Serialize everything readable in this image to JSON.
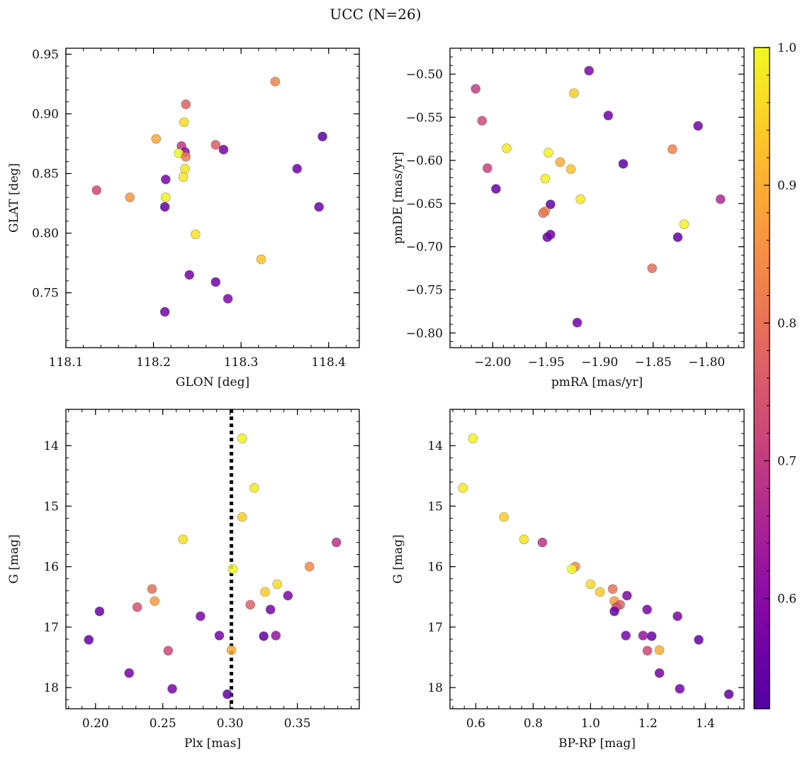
{
  "figure": {
    "title": "UCC (N=26)"
  },
  "colorbar": {
    "range": [
      0.52,
      1.0
    ],
    "ticks": [
      {
        "value": 1.0,
        "label": "1.0"
      },
      {
        "value": 0.9,
        "label": "0.9"
      },
      {
        "value": 0.8,
        "label": "0.8"
      },
      {
        "value": 0.7,
        "label": "0.7"
      },
      {
        "value": 0.6,
        "label": "0.6"
      }
    ],
    "colormap": "plasma"
  },
  "chart_data": [
    {
      "type": "scatter",
      "xlabel": "GLON [deg]",
      "ylabel": "GLAT [deg]",
      "xlim": [
        118.1,
        118.435
      ],
      "ylim": [
        0.704,
        0.955
      ],
      "xticks": [
        {
          "value": 118.1,
          "label": "118.1"
        },
        {
          "value": 118.2,
          "label": "118.2"
        },
        {
          "value": 118.3,
          "label": "118.3"
        },
        {
          "value": 118.4,
          "label": "118.4"
        }
      ],
      "yticks": [
        {
          "value": 0.95,
          "label": "0.95"
        },
        {
          "value": 0.9,
          "label": "0.90"
        },
        {
          "value": 0.85,
          "label": "0.85"
        },
        {
          "value": 0.8,
          "label": "0.80"
        },
        {
          "value": 0.75,
          "label": "0.75"
        }
      ],
      "invert_y": false,
      "points": [
        {
          "x": 118.339,
          "y": 0.927,
          "c": 0.83
        },
        {
          "x": 118.237,
          "y": 0.908,
          "c": 0.77
        },
        {
          "x": 118.235,
          "y": 0.893,
          "c": 0.96
        },
        {
          "x": 118.203,
          "y": 0.879,
          "c": 0.89
        },
        {
          "x": 118.393,
          "y": 0.881,
          "c": 0.53
        },
        {
          "x": 118.271,
          "y": 0.874,
          "c": 0.76
        },
        {
          "x": 118.28,
          "y": 0.87,
          "c": 0.57
        },
        {
          "x": 118.232,
          "y": 0.873,
          "c": 0.69
        },
        {
          "x": 118.236,
          "y": 0.868,
          "c": 0.6
        },
        {
          "x": 118.229,
          "y": 0.867,
          "c": 1.0
        },
        {
          "x": 118.237,
          "y": 0.864,
          "c": 0.82
        },
        {
          "x": 118.236,
          "y": 0.854,
          "c": 0.97
        },
        {
          "x": 118.364,
          "y": 0.854,
          "c": 0.56
        },
        {
          "x": 118.234,
          "y": 0.847,
          "c": 0.98
        },
        {
          "x": 118.214,
          "y": 0.845,
          "c": 0.57
        },
        {
          "x": 118.135,
          "y": 0.836,
          "c": 0.72
        },
        {
          "x": 118.173,
          "y": 0.83,
          "c": 0.86
        },
        {
          "x": 118.214,
          "y": 0.83,
          "c": 0.99
        },
        {
          "x": 118.213,
          "y": 0.822,
          "c": 0.54
        },
        {
          "x": 118.389,
          "y": 0.822,
          "c": 0.56
        },
        {
          "x": 118.248,
          "y": 0.799,
          "c": 0.97
        },
        {
          "x": 118.323,
          "y": 0.778,
          "c": 0.93
        },
        {
          "x": 118.241,
          "y": 0.765,
          "c": 0.57
        },
        {
          "x": 118.271,
          "y": 0.759,
          "c": 0.56
        },
        {
          "x": 118.285,
          "y": 0.745,
          "c": 0.58
        },
        {
          "x": 118.213,
          "y": 0.734,
          "c": 0.56
        }
      ]
    },
    {
      "type": "scatter",
      "xlabel": "pmRA [mas/yr]",
      "ylabel": "pmDE [mas/yr]",
      "xlim": [
        -2.04,
        -1.765
      ],
      "ylim": [
        -0.817,
        -0.47
      ],
      "xticks": [
        {
          "value": -2.0,
          "label": "−2.00"
        },
        {
          "value": -1.95,
          "label": "−1.95"
        },
        {
          "value": -1.9,
          "label": "−1.90"
        },
        {
          "value": -1.85,
          "label": "−1.85"
        },
        {
          "value": -1.8,
          "label": "−1.80"
        }
      ],
      "yticks": [
        {
          "value": -0.5,
          "label": "−0.50"
        },
        {
          "value": -0.55,
          "label": "−0.55"
        },
        {
          "value": -0.6,
          "label": "−0.60"
        },
        {
          "value": -0.65,
          "label": "−0.65"
        },
        {
          "value": -0.7,
          "label": "−0.70"
        },
        {
          "value": -0.75,
          "label": "−0.75"
        },
        {
          "value": -0.8,
          "label": "−0.80"
        }
      ],
      "invert_y": false,
      "points": [
        {
          "x": -1.91,
          "y": -0.496,
          "c": 0.58
        },
        {
          "x": -2.016,
          "y": -0.517,
          "c": 0.7
        },
        {
          "x": -1.924,
          "y": -0.522,
          "c": 0.94
        },
        {
          "x": -1.892,
          "y": -0.548,
          "c": 0.56
        },
        {
          "x": -2.01,
          "y": -0.554,
          "c": 0.73
        },
        {
          "x": -1.808,
          "y": -0.56,
          "c": 0.56
        },
        {
          "x": -1.987,
          "y": -0.586,
          "c": 0.98
        },
        {
          "x": -1.832,
          "y": -0.587,
          "c": 0.83
        },
        {
          "x": -1.948,
          "y": -0.591,
          "c": 0.99
        },
        {
          "x": -1.878,
          "y": -0.604,
          "c": 0.53
        },
        {
          "x": -1.937,
          "y": -0.602,
          "c": 0.9
        },
        {
          "x": -2.005,
          "y": -0.609,
          "c": 0.71
        },
        {
          "x": -1.927,
          "y": -0.61,
          "c": 0.93
        },
        {
          "x": -1.951,
          "y": -0.621,
          "c": 0.99
        },
        {
          "x": -1.997,
          "y": -0.633,
          "c": 0.55
        },
        {
          "x": -1.918,
          "y": -0.645,
          "c": 0.98
        },
        {
          "x": -1.787,
          "y": -0.645,
          "c": 0.66
        },
        {
          "x": -1.946,
          "y": -0.651,
          "c": 0.54
        },
        {
          "x": -1.951,
          "y": -0.659,
          "c": 0.84
        },
        {
          "x": -1.953,
          "y": -0.661,
          "c": 0.81
        },
        {
          "x": -1.821,
          "y": -0.674,
          "c": 0.99
        },
        {
          "x": -1.946,
          "y": -0.686,
          "c": 0.56
        },
        {
          "x": -1.827,
          "y": -0.689,
          "c": 0.55
        },
        {
          "x": -1.949,
          "y": -0.689,
          "c": 0.56
        },
        {
          "x": -1.851,
          "y": -0.725,
          "c": 0.79
        },
        {
          "x": -1.921,
          "y": -0.788,
          "c": 0.56
        }
      ]
    },
    {
      "type": "scatter",
      "xlabel": "Plx [mas]",
      "ylabel": "G [mag]",
      "xlim": [
        0.178,
        0.396
      ],
      "ylim": [
        18.35,
        13.4
      ],
      "xticks": [
        {
          "value": 0.2,
          "label": "0.20"
        },
        {
          "value": 0.25,
          "label": "0.25"
        },
        {
          "value": 0.3,
          "label": "0.30"
        },
        {
          "value": 0.35,
          "label": "0.35"
        }
      ],
      "yticks": [
        {
          "value": 14,
          "label": "14"
        },
        {
          "value": 15,
          "label": "15"
        },
        {
          "value": 16,
          "label": "16"
        },
        {
          "value": 17,
          "label": "17"
        },
        {
          "value": 18,
          "label": "18"
        }
      ],
      "invert_y": true,
      "vline": 0.301,
      "points": [
        {
          "x": 0.309,
          "y": 13.88,
          "c": 0.99
        },
        {
          "x": 0.318,
          "y": 14.7,
          "c": 0.98
        },
        {
          "x": 0.309,
          "y": 15.18,
          "c": 0.94
        },
        {
          "x": 0.265,
          "y": 15.55,
          "c": 0.97
        },
        {
          "x": 0.379,
          "y": 15.6,
          "c": 0.68
        },
        {
          "x": 0.359,
          "y": 16.0,
          "c": 0.84
        },
        {
          "x": 0.302,
          "y": 16.04,
          "c": 1.0
        },
        {
          "x": 0.335,
          "y": 16.29,
          "c": 0.96
        },
        {
          "x": 0.242,
          "y": 16.37,
          "c": 0.8
        },
        {
          "x": 0.326,
          "y": 16.42,
          "c": 0.94
        },
        {
          "x": 0.343,
          "y": 16.48,
          "c": 0.58
        },
        {
          "x": 0.244,
          "y": 16.57,
          "c": 0.87
        },
        {
          "x": 0.315,
          "y": 16.63,
          "c": 0.77
        },
        {
          "x": 0.231,
          "y": 16.67,
          "c": 0.74
        },
        {
          "x": 0.33,
          "y": 16.71,
          "c": 0.57
        },
        {
          "x": 0.203,
          "y": 16.74,
          "c": 0.55
        },
        {
          "x": 0.278,
          "y": 16.82,
          "c": 0.58
        },
        {
          "x": 0.292,
          "y": 17.14,
          "c": 0.57
        },
        {
          "x": 0.325,
          "y": 17.15,
          "c": 0.55
        },
        {
          "x": 0.334,
          "y": 17.14,
          "c": 0.62
        },
        {
          "x": 0.195,
          "y": 17.21,
          "c": 0.54
        },
        {
          "x": 0.254,
          "y": 17.39,
          "c": 0.72
        },
        {
          "x": 0.301,
          "y": 17.38,
          "c": 0.9
        },
        {
          "x": 0.225,
          "y": 17.76,
          "c": 0.57
        },
        {
          "x": 0.257,
          "y": 18.02,
          "c": 0.57
        },
        {
          "x": 0.298,
          "y": 18.11,
          "c": 0.54
        }
      ]
    },
    {
      "type": "scatter",
      "xlabel": "BP-RP [mag]",
      "ylabel": "G [mag]",
      "xlim": [
        0.51,
        1.535
      ],
      "ylim": [
        18.35,
        13.4
      ],
      "xticks": [
        {
          "value": 0.6,
          "label": "0.6"
        },
        {
          "value": 0.8,
          "label": "0.8"
        },
        {
          "value": 1.0,
          "label": "1.0"
        },
        {
          "value": 1.2,
          "label": "1.2"
        },
        {
          "value": 1.4,
          "label": "1.4"
        }
      ],
      "yticks": [
        {
          "value": 14,
          "label": "14"
        },
        {
          "value": 15,
          "label": "15"
        },
        {
          "value": 16,
          "label": "16"
        },
        {
          "value": 17,
          "label": "17"
        },
        {
          "value": 18,
          "label": "18"
        }
      ],
      "invert_y": true,
      "points": [
        {
          "x": 0.59,
          "y": 13.88,
          "c": 0.99
        },
        {
          "x": 0.555,
          "y": 14.7,
          "c": 0.98
        },
        {
          "x": 0.698,
          "y": 15.18,
          "c": 0.94
        },
        {
          "x": 0.768,
          "y": 15.55,
          "c": 0.97
        },
        {
          "x": 0.832,
          "y": 15.6,
          "c": 0.68
        },
        {
          "x": 0.947,
          "y": 16.0,
          "c": 0.84
        },
        {
          "x": 0.935,
          "y": 16.04,
          "c": 1.0
        },
        {
          "x": 1.0,
          "y": 16.29,
          "c": 0.96
        },
        {
          "x": 1.077,
          "y": 16.37,
          "c": 0.8
        },
        {
          "x": 1.033,
          "y": 16.42,
          "c": 0.94
        },
        {
          "x": 1.127,
          "y": 16.48,
          "c": 0.58
        },
        {
          "x": 1.083,
          "y": 16.57,
          "c": 0.87
        },
        {
          "x": 1.103,
          "y": 16.63,
          "c": 0.77
        },
        {
          "x": 1.09,
          "y": 16.67,
          "c": 0.74
        },
        {
          "x": 1.197,
          "y": 16.71,
          "c": 0.57
        },
        {
          "x": 1.083,
          "y": 16.74,
          "c": 0.55
        },
        {
          "x": 1.303,
          "y": 16.82,
          "c": 0.58
        },
        {
          "x": 1.123,
          "y": 17.14,
          "c": 0.57
        },
        {
          "x": 1.213,
          "y": 17.15,
          "c": 0.55
        },
        {
          "x": 1.183,
          "y": 17.14,
          "c": 0.62
        },
        {
          "x": 1.377,
          "y": 17.21,
          "c": 0.54
        },
        {
          "x": 1.198,
          "y": 17.39,
          "c": 0.72
        },
        {
          "x": 1.24,
          "y": 17.38,
          "c": 0.9
        },
        {
          "x": 1.24,
          "y": 17.76,
          "c": 0.57
        },
        {
          "x": 1.311,
          "y": 18.02,
          "c": 0.57
        },
        {
          "x": 1.482,
          "y": 18.11,
          "c": 0.54
        }
      ]
    }
  ]
}
